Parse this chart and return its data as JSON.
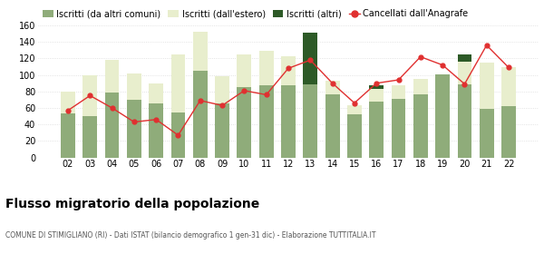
{
  "years": [
    "02",
    "03",
    "04",
    "05",
    "06",
    "07",
    "08",
    "09",
    "10",
    "11",
    "12",
    "13",
    "14",
    "15",
    "16",
    "17",
    "18",
    "19",
    "20",
    "21",
    "22"
  ],
  "iscritti_altri_comuni": [
    53,
    50,
    79,
    70,
    65,
    55,
    105,
    65,
    85,
    87,
    87,
    89,
    76,
    52,
    68,
    71,
    76,
    101,
    89,
    59,
    62
  ],
  "iscritti_estero": [
    27,
    50,
    39,
    32,
    25,
    70,
    47,
    33,
    40,
    42,
    36,
    0,
    17,
    11,
    15,
    17,
    19,
    0,
    27,
    56,
    47
  ],
  "iscritti_altri": [
    0,
    0,
    0,
    0,
    0,
    0,
    0,
    0,
    0,
    0,
    0,
    62,
    0,
    0,
    5,
    0,
    0,
    0,
    9,
    0,
    0
  ],
  "cancellati": [
    57,
    75,
    60,
    43,
    46,
    27,
    69,
    63,
    81,
    76,
    108,
    118,
    90,
    66,
    90,
    94,
    122,
    112,
    89,
    136,
    109
  ],
  "colors_bar1": "#8fac7a",
  "colors_bar2": "#e8eecd",
  "colors_bar3": "#2d5a27",
  "color_line": "#e03030",
  "legend_labels": [
    "Iscritti (da altri comuni)",
    "Iscritti (dall'estero)",
    "Iscritti (altri)",
    "Cancellati dall'Anagrafe"
  ],
  "title": "Flusso migratorio della popolazione",
  "subtitle": "COMUNE DI STIMIGLIANO (RI) - Dati ISTAT (bilancio demografico 1 gen-31 dic) - Elaborazione TUTTITALIA.IT",
  "ylim": [
    0,
    160
  ],
  "yticks": [
    0,
    20,
    40,
    60,
    80,
    100,
    120,
    140,
    160
  ]
}
